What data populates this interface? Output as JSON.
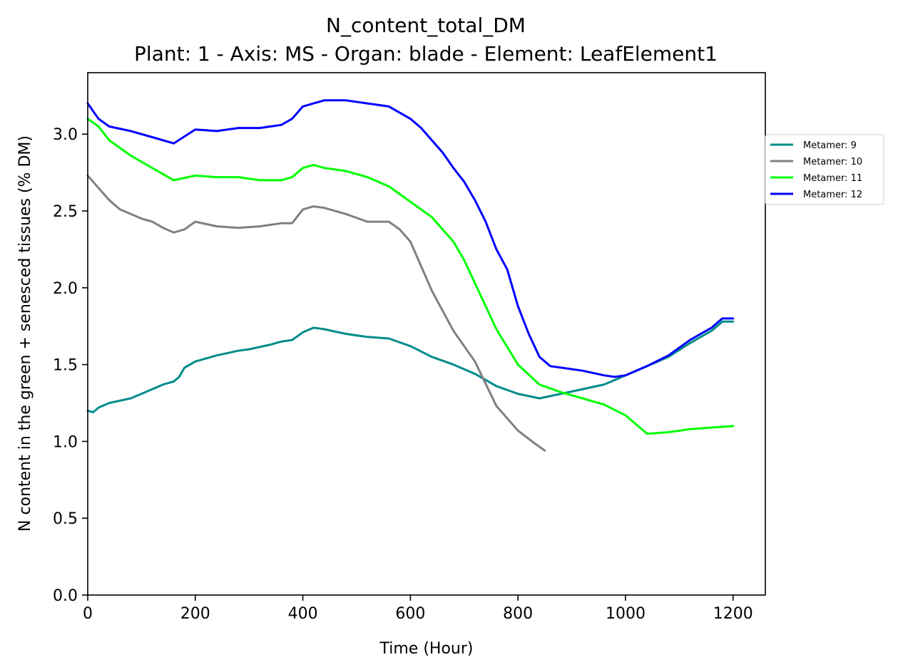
{
  "chart_data": {
    "type": "line",
    "title": "N_content_total_DM",
    "subtitle": "Plant: 1 - Axis: MS - Organ: blade - Element: LeafElement1",
    "xlabel": "Time (Hour)",
    "ylabel": "N content in the green + senesced tissues (% DM)",
    "xlim": [
      0,
      1260
    ],
    "ylim": [
      0,
      3.4
    ],
    "xticks": [
      0,
      200,
      400,
      600,
      800,
      1000,
      1200
    ],
    "yticks": [
      0.0,
      0.5,
      1.0,
      1.5,
      2.0,
      2.5,
      3.0
    ],
    "xtick_labels": [
      "0",
      "200",
      "400",
      "600",
      "800",
      "1000",
      "1200"
    ],
    "ytick_labels": [
      "0.0",
      "0.5",
      "1.0",
      "1.5",
      "2.0",
      "2.5",
      "3.0"
    ],
    "grid": false,
    "legend_position": "right, outside the plot area",
    "series": [
      {
        "name": "Metamer: 9",
        "color": "#008b8b",
        "x": [
          0,
          10,
          20,
          40,
          80,
          100,
          120,
          140,
          160,
          170,
          180,
          200,
          240,
          280,
          300,
          340,
          360,
          380,
          400,
          420,
          440,
          480,
          520,
          560,
          600,
          640,
          680,
          720,
          760,
          800,
          840,
          880,
          920,
          960,
          980,
          1000,
          1040,
          1080,
          1120,
          1160,
          1180,
          1200
        ],
        "y": [
          1.2,
          1.19,
          1.22,
          1.25,
          1.28,
          1.31,
          1.34,
          1.37,
          1.39,
          1.42,
          1.48,
          1.52,
          1.56,
          1.59,
          1.6,
          1.63,
          1.65,
          1.66,
          1.71,
          1.74,
          1.73,
          1.7,
          1.68,
          1.67,
          1.62,
          1.55,
          1.5,
          1.44,
          1.36,
          1.31,
          1.28,
          1.31,
          1.34,
          1.37,
          1.4,
          1.43,
          1.49,
          1.55,
          1.64,
          1.72,
          1.78,
          1.78
        ]
      },
      {
        "name": "Metamer: 10",
        "color": "#808080",
        "x": [
          0,
          20,
          40,
          60,
          80,
          100,
          120,
          140,
          160,
          180,
          200,
          240,
          280,
          320,
          360,
          380,
          400,
          420,
          440,
          480,
          520,
          560,
          580,
          600,
          640,
          680,
          720,
          760,
          800,
          830,
          850
        ],
        "y": [
          2.73,
          2.65,
          2.57,
          2.51,
          2.48,
          2.45,
          2.43,
          2.39,
          2.36,
          2.38,
          2.43,
          2.4,
          2.39,
          2.4,
          2.42,
          2.42,
          2.51,
          2.53,
          2.52,
          2.48,
          2.43,
          2.43,
          2.38,
          2.3,
          1.98,
          1.72,
          1.52,
          1.23,
          1.07,
          0.99,
          0.94
        ]
      },
      {
        "name": "Metamer: 11",
        "color": "#00ff00",
        "x": [
          0,
          20,
          40,
          60,
          80,
          100,
          120,
          140,
          160,
          200,
          240,
          280,
          320,
          360,
          380,
          400,
          420,
          440,
          480,
          520,
          560,
          600,
          640,
          680,
          700,
          720,
          760,
          800,
          840,
          880,
          920,
          960,
          1000,
          1040,
          1080,
          1120,
          1160,
          1200
        ],
        "y": [
          3.1,
          3.05,
          2.96,
          2.91,
          2.86,
          2.82,
          2.78,
          2.74,
          2.7,
          2.73,
          2.72,
          2.72,
          2.7,
          2.7,
          2.72,
          2.78,
          2.8,
          2.78,
          2.76,
          2.72,
          2.66,
          2.56,
          2.46,
          2.3,
          2.18,
          2.03,
          1.73,
          1.5,
          1.37,
          1.32,
          1.28,
          1.24,
          1.17,
          1.05,
          1.06,
          1.08,
          1.09,
          1.1
        ]
      },
      {
        "name": "Metamer: 12",
        "color": "#0000ff",
        "x": [
          0,
          20,
          40,
          80,
          120,
          160,
          200,
          240,
          280,
          320,
          360,
          380,
          400,
          420,
          440,
          480,
          520,
          560,
          600,
          620,
          640,
          660,
          680,
          700,
          720,
          740,
          760,
          780,
          800,
          820,
          840,
          860,
          880,
          920,
          960,
          980,
          1000,
          1040,
          1080,
          1120,
          1160,
          1180,
          1200
        ],
        "y": [
          3.2,
          3.1,
          3.05,
          3.02,
          2.98,
          2.94,
          3.03,
          3.02,
          3.04,
          3.04,
          3.06,
          3.1,
          3.18,
          3.2,
          3.22,
          3.22,
          3.2,
          3.18,
          3.1,
          3.04,
          2.96,
          2.88,
          2.78,
          2.69,
          2.57,
          2.43,
          2.25,
          2.12,
          1.88,
          1.7,
          1.55,
          1.49,
          1.48,
          1.46,
          1.43,
          1.42,
          1.43,
          1.49,
          1.56,
          1.66,
          1.74,
          1.8,
          1.8
        ]
      }
    ]
  }
}
